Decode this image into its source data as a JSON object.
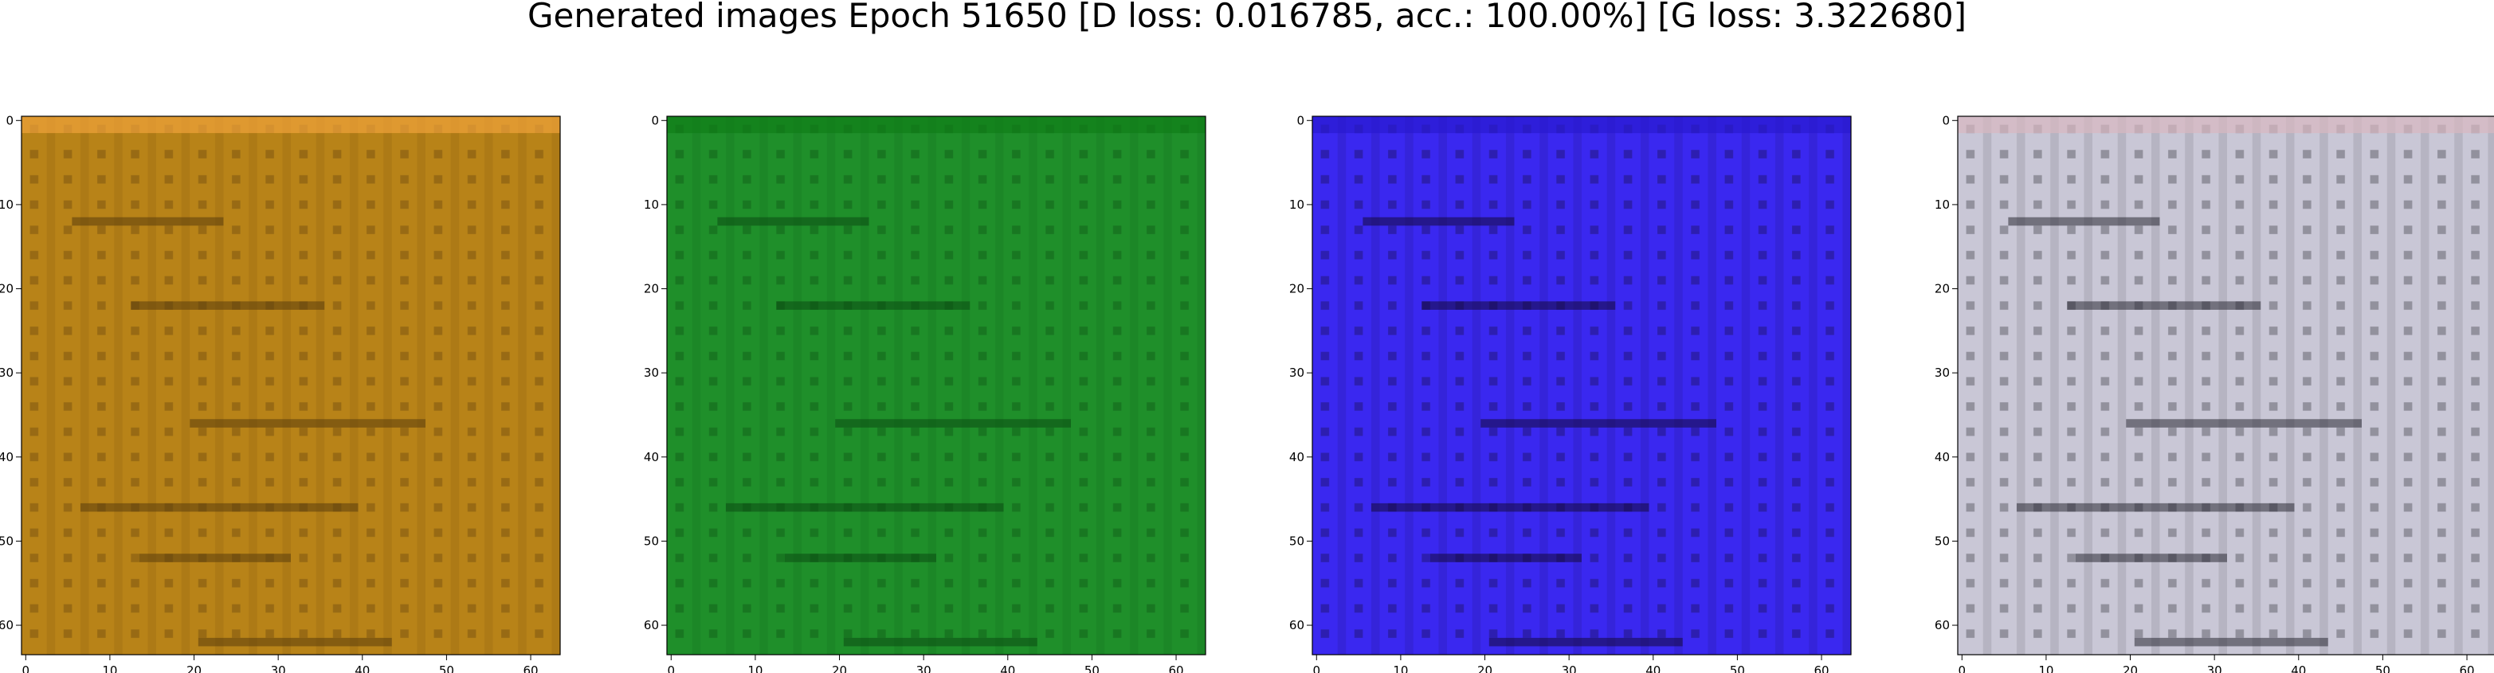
{
  "figure": {
    "title": "Generated images Epoch 51650 [D loss: 0.016785, acc.: 100.00%] [G loss: 3.322680]"
  },
  "chart_data": [
    {
      "type": "heatmap",
      "title": "",
      "xlabel": "",
      "ylabel": "",
      "xlim": [
        -0.5,
        63.5
      ],
      "ylim": [
        63.5,
        -0.5
      ],
      "xticks": [
        "0",
        "10",
        "20",
        "30",
        "40",
        "50",
        "60"
      ],
      "yticks": [
        "0",
        "10",
        "20",
        "30",
        "40",
        "50",
        "60"
      ],
      "base_color": "#b88318",
      "accent_color": "#5a3c0c",
      "frame_color": "#f0a23a"
    },
    {
      "type": "heatmap",
      "title": "",
      "xlabel": "",
      "ylabel": "",
      "xlim": [
        -0.5,
        63.5
      ],
      "ylim": [
        63.5,
        -0.5
      ],
      "xticks": [
        "0",
        "10",
        "20",
        "30",
        "40",
        "50",
        "60"
      ],
      "yticks": [
        "0",
        "10",
        "20",
        "30",
        "40",
        "50",
        "60"
      ],
      "base_color": "#1f8f2a",
      "accent_color": "#0b4b12",
      "frame_color": "#0f7d18"
    },
    {
      "type": "heatmap",
      "title": "",
      "xlabel": "",
      "ylabel": "",
      "xlim": [
        -0.5,
        63.5
      ],
      "ylim": [
        63.5,
        -0.5
      ],
      "xticks": [
        "0",
        "10",
        "20",
        "30",
        "40",
        "50",
        "60"
      ],
      "yticks": [
        "0",
        "10",
        "20",
        "30",
        "40",
        "50",
        "60"
      ],
      "base_color": "#3a28f0",
      "accent_color": "#140a3a",
      "frame_color": "#2a1ad0"
    },
    {
      "type": "heatmap",
      "title": "",
      "xlabel": "",
      "ylabel": "",
      "xlim": [
        -0.5,
        63.5
      ],
      "ylim": [
        63.5,
        -0.5
      ],
      "xticks": [
        "0",
        "10",
        "20",
        "30",
        "40",
        "50",
        "60"
      ],
      "yticks": [
        "0",
        "10",
        "20",
        "30",
        "40",
        "50",
        "60"
      ],
      "base_color": "#c9c7d6",
      "accent_color": "#2a2a34",
      "frame_color": "#d8b8c0"
    }
  ]
}
